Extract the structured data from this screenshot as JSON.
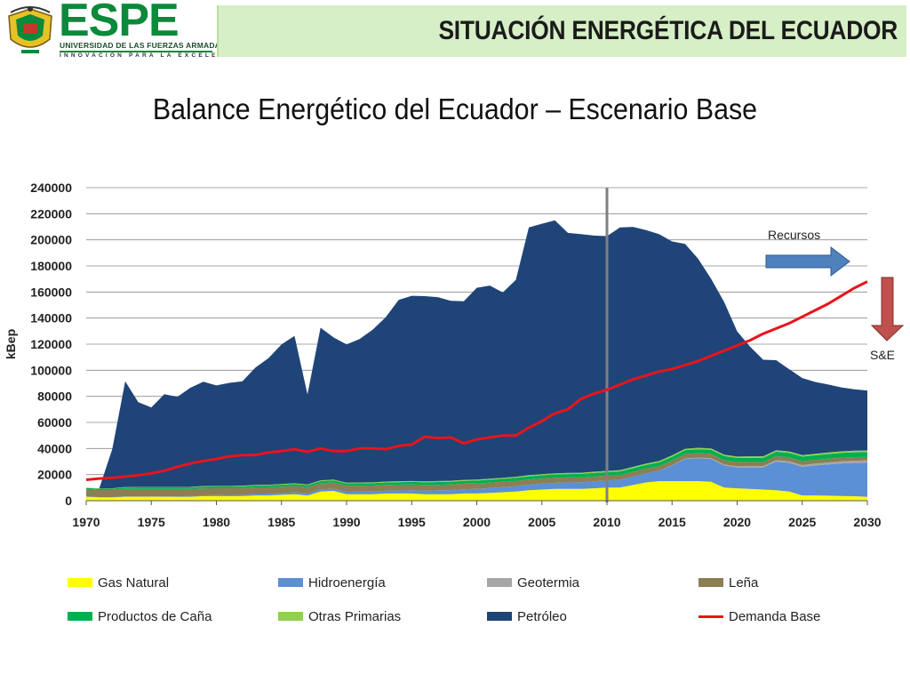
{
  "header": {
    "logo_text": "ESPE",
    "logo_line1": "UNIVERSIDAD DE LAS FUERZAS ARMADAS",
    "logo_line2": "INNOVACIÓN PARA LA EXCELENCIA",
    "title": "SITUACIÓN ENERGÉTICA DEL ECUADOR"
  },
  "subtitle": "Balance Energético del Ecuador – Escenario Base",
  "colors": {
    "header_band": "#d6efc6",
    "logo_green": "#0a8a3a",
    "gas": "#ffff00",
    "hidro": "#5b8fd6",
    "geo": "#a6a6a6",
    "lena": "#8c7e55",
    "cana": "#00b050",
    "otras": "#92d050",
    "petroleo": "#1f4478",
    "demanda": "#e8141c",
    "arrow_blue": "#4f81bd",
    "arrow_red": "#c0504d"
  },
  "chart_data": {
    "type": "area",
    "ylabel": "kBep",
    "ylim": [
      0,
      240000
    ],
    "yticks": [
      "0",
      "20000",
      "40000",
      "60000",
      "80000",
      "100000",
      "120000",
      "140000",
      "160000",
      "180000",
      "200000",
      "220000",
      "240000"
    ],
    "xlim": [
      1970,
      2030
    ],
    "xticks": [
      "1970",
      "1975",
      "1980",
      "1985",
      "1990",
      "1995",
      "2000",
      "2005",
      "2010",
      "2015",
      "2020",
      "2025",
      "2030"
    ],
    "divider_year": 2010,
    "grid": true,
    "stacked": true,
    "x": [
      1970,
      1971,
      1972,
      1973,
      1974,
      1975,
      1976,
      1977,
      1978,
      1979,
      1980,
      1981,
      1982,
      1983,
      1984,
      1985,
      1986,
      1987,
      1988,
      1989,
      1990,
      1991,
      1992,
      1993,
      1994,
      1995,
      1996,
      1997,
      1998,
      1999,
      2000,
      2001,
      2002,
      2003,
      2004,
      2005,
      2006,
      2007,
      2008,
      2009,
      2010,
      2011,
      2012,
      2013,
      2014,
      2015,
      2016,
      2017,
      2018,
      2019,
      2020,
      2021,
      2022,
      2023,
      2024,
      2025,
      2026,
      2027,
      2028,
      2029,
      2030
    ],
    "series": [
      {
        "name": "Gas Natural",
        "key": "gas",
        "values": [
          3000,
          2500,
          2500,
          3000,
          3000,
          3000,
          3000,
          3000,
          3000,
          3500,
          3500,
          3500,
          3500,
          4000,
          4000,
          4500,
          5000,
          4000,
          7000,
          7500,
          5000,
          5000,
          5000,
          5500,
          5500,
          5500,
          5000,
          5000,
          5000,
          5500,
          5500,
          6000,
          6500,
          7000,
          8000,
          8500,
          9000,
          9000,
          9000,
          9500,
          10000,
          10000,
          12000,
          14000,
          15000,
          15000,
          15000,
          15000,
          14500,
          10000,
          9500,
          9000,
          8500,
          8000,
          7000,
          4000,
          4000,
          3800,
          3600,
          3400,
          3000
        ]
      },
      {
        "name": "Hidroenergía",
        "key": "hidro",
        "values": [
          200,
          200,
          200,
          250,
          300,
          300,
          300,
          400,
          500,
          600,
          800,
          900,
          1000,
          1100,
          1200,
          1300,
          1400,
          1500,
          1600,
          1700,
          1800,
          1900,
          2000,
          2100,
          2300,
          2500,
          2700,
          2900,
          3100,
          3300,
          3500,
          3700,
          3900,
          4100,
          4300,
          4500,
          4700,
          4900,
          5100,
          5300,
          5500,
          6000,
          6500,
          7000,
          8000,
          12000,
          17000,
          17500,
          17500,
          17000,
          16000,
          16500,
          17000,
          22000,
          22000,
          22000,
          23000,
          24000,
          25000,
          25500,
          26000
        ]
      },
      {
        "name": "Geotermia",
        "key": "geo",
        "values": [
          0,
          0,
          0,
          0,
          0,
          0,
          0,
          0,
          0,
          0,
          0,
          0,
          0,
          0,
          0,
          0,
          0,
          0,
          0,
          0,
          0,
          0,
          0,
          0,
          0,
          0,
          0,
          0,
          0,
          0,
          0,
          0,
          0,
          0,
          0,
          0,
          0,
          0,
          0,
          0,
          0,
          0,
          0,
          0,
          0,
          200,
          400,
          500,
          600,
          700,
          800,
          900,
          1000,
          1100,
          1200,
          1300,
          1400,
          1500,
          1600,
          1700,
          1800
        ]
      },
      {
        "name": "Leña",
        "key": "lena",
        "values": [
          5500,
          5500,
          5500,
          5800,
          5800,
          5800,
          5700,
          5600,
          5500,
          5400,
          5300,
          5200,
          5100,
          5100,
          5000,
          5000,
          4900,
          4800,
          4800,
          4700,
          4700,
          4600,
          4600,
          4500,
          4500,
          4400,
          4400,
          4300,
          4300,
          4200,
          4200,
          4100,
          4100,
          4000,
          4000,
          4000,
          3900,
          3900,
          3800,
          3800,
          3700,
          3700,
          3600,
          3600,
          3500,
          3500,
          3400,
          3400,
          3300,
          3300,
          3200,
          3200,
          3100,
          3100,
          3000,
          3000,
          2900,
          2900,
          2800,
          2800,
          2700
        ]
      },
      {
        "name": "Productos de Caña",
        "key": "cana",
        "values": [
          1000,
          1000,
          1000,
          1100,
          1100,
          1100,
          1200,
          1200,
          1200,
          1300,
          1300,
          1300,
          1400,
          1400,
          1500,
          1500,
          1500,
          1600,
          1600,
          1700,
          1700,
          1800,
          1800,
          1900,
          1900,
          2000,
          2000,
          2100,
          2100,
          2200,
          2200,
          2300,
          2300,
          2400,
          2400,
          2500,
          2500,
          2600,
          2600,
          2700,
          2700,
          2800,
          2800,
          2900,
          2900,
          3000,
          3000,
          3100,
          3100,
          3200,
          3200,
          3300,
          3300,
          3400,
          3400,
          3500,
          3500,
          3600,
          3600,
          3700,
          3700
        ]
      },
      {
        "name": "Otras Primarias",
        "key": "otras",
        "values": [
          300,
          300,
          300,
          350,
          350,
          350,
          400,
          400,
          400,
          450,
          450,
          450,
          500,
          500,
          500,
          550,
          550,
          550,
          600,
          600,
          600,
          650,
          650,
          650,
          700,
          700,
          700,
          750,
          750,
          750,
          800,
          800,
          800,
          850,
          850,
          850,
          900,
          900,
          900,
          950,
          950,
          950,
          1000,
          1000,
          1000,
          1050,
          1050,
          1050,
          1100,
          1100,
          1100,
          1150,
          1150,
          1150,
          1200,
          1200,
          1200,
          1250,
          1250,
          1250,
          1300
        ]
      },
      {
        "name": "Petróleo",
        "key": "petroleo",
        "values": [
          0,
          0,
          30000,
          81000,
          65000,
          61000,
          71000,
          69000,
          76000,
          80000,
          77000,
          79000,
          80000,
          90000,
          97000,
          107000,
          113000,
          69000,
          117000,
          109000,
          106000,
          110000,
          117000,
          126000,
          139000,
          142000,
          142000,
          141000,
          138000,
          137000,
          147000,
          148000,
          142000,
          151000,
          190000,
          192000,
          194000,
          184000,
          183000,
          181000,
          180000,
          186000,
          184000,
          179000,
          174000,
          164000,
          157000,
          145000,
          130000,
          117000,
          96000,
          84000,
          74000,
          69000,
          63000,
          59000,
          55000,
          52000,
          49000,
          47000,
          46000
        ]
      }
    ],
    "line": {
      "name": "Demanda Base",
      "key": "demanda",
      "values": [
        16000,
        17000,
        17500,
        18500,
        19500,
        21000,
        23000,
        26000,
        28500,
        30500,
        32000,
        34000,
        35000,
        35000,
        37000,
        38000,
        39500,
        37500,
        40000,
        38000,
        38000,
        40000,
        40000,
        39500,
        42000,
        43000,
        49000,
        48000,
        48500,
        44000,
        47000,
        48500,
        50000,
        50000,
        56000,
        61000,
        67000,
        70000,
        78000,
        82000,
        85000,
        89000,
        93000,
        96000,
        99000,
        101000,
        104000,
        107000,
        111000,
        115000,
        119000,
        123000,
        128000,
        132000,
        136000,
        141000,
        146000,
        151000,
        157000,
        163000,
        168000
      ]
    },
    "annotations": {
      "recursos": "Recursos",
      "se": "S&E"
    }
  },
  "legend": [
    {
      "label": "Gas Natural",
      "key": "gas",
      "kind": "swatch"
    },
    {
      "label": "Hidroenergía",
      "key": "hidro",
      "kind": "swatch"
    },
    {
      "label": "Geotermia",
      "key": "geo",
      "kind": "swatch"
    },
    {
      "label": "Leña",
      "key": "lena",
      "kind": "swatch"
    },
    {
      "label": "Productos de Caña",
      "key": "cana",
      "kind": "swatch"
    },
    {
      "label": "Otras Primarias",
      "key": "otras",
      "kind": "swatch"
    },
    {
      "label": "Petróleo",
      "key": "petroleo",
      "kind": "swatch"
    },
    {
      "label": "Demanda Base",
      "key": "demanda",
      "kind": "line"
    }
  ]
}
